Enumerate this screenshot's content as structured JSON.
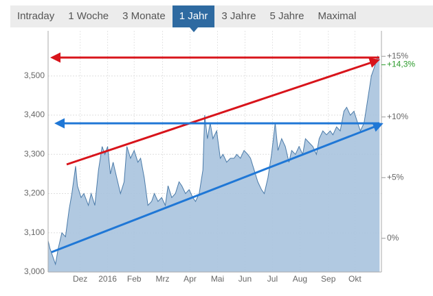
{
  "tabs": [
    "Intraday",
    "1 Woche",
    "3 Monate",
    "1 Jahr",
    "3 Jahre",
    "5 Jahre",
    "Maximal"
  ],
  "active_tab": 3,
  "chart_data": {
    "type": "area",
    "x": [
      0,
      2,
      5,
      8,
      11,
      15,
      19,
      23,
      26,
      30,
      32,
      36,
      39,
      44,
      47,
      51,
      55,
      59,
      62,
      65,
      68,
      71,
      75,
      79,
      83,
      86,
      90,
      94,
      98,
      101,
      105,
      109,
      113,
      116,
      120,
      124,
      128,
      131,
      135,
      139,
      143,
      146,
      150,
      154,
      158,
      161,
      165,
      169,
      171,
      174,
      177,
      180,
      184,
      188,
      191,
      195,
      199,
      203,
      206,
      210,
      214,
      218,
      221,
      225,
      229,
      233,
      236,
      240,
      244,
      248,
      251,
      255,
      259,
      263,
      266,
      270,
      274,
      278,
      281,
      285,
      289,
      293,
      296,
      300,
      304,
      308,
      311,
      315,
      319,
      323,
      326,
      330,
      334,
      338,
      341,
      345,
      349,
      353,
      356,
      360,
      362
    ],
    "values": [
      3080,
      3060,
      3040,
      3020,
      3060,
      3100,
      3090,
      3160,
      3200,
      3270,
      3220,
      3190,
      3200,
      3170,
      3200,
      3170,
      3260,
      3320,
      3300,
      3320,
      3250,
      3280,
      3240,
      3200,
      3230,
      3320,
      3290,
      3310,
      3280,
      3290,
      3240,
      3170,
      3180,
      3200,
      3180,
      3190,
      3170,
      3220,
      3190,
      3200,
      3230,
      3220,
      3200,
      3210,
      3190,
      3180,
      3200,
      3260,
      3400,
      3340,
      3380,
      3340,
      3360,
      3290,
      3300,
      3280,
      3290,
      3290,
      3300,
      3290,
      3310,
      3300,
      3290,
      3260,
      3230,
      3210,
      3200,
      3240,
      3300,
      3380,
      3310,
      3340,
      3320,
      3280,
      3310,
      3300,
      3320,
      3300,
      3340,
      3330,
      3320,
      3300,
      3340,
      3360,
      3350,
      3360,
      3350,
      3370,
      3360,
      3410,
      3420,
      3400,
      3410,
      3380,
      3360,
      3380,
      3440,
      3500,
      3520,
      3550,
      3540
    ],
    "color": "#4a7aa8",
    "fill": "#a9c3de",
    "xlim": [
      0,
      364
    ],
    "xticks": [
      {
        "value": 35,
        "label": "Dez"
      },
      {
        "value": 65,
        "label": "2016"
      },
      {
        "value": 94,
        "label": "Feb"
      },
      {
        "value": 125,
        "label": "Mrz"
      },
      {
        "value": 155,
        "label": "Apr"
      },
      {
        "value": 185,
        "label": "Mai"
      },
      {
        "value": 215,
        "label": "Jun"
      },
      {
        "value": 245,
        "label": "Jul"
      },
      {
        "value": 275,
        "label": "Aug"
      },
      {
        "value": 306,
        "label": "Sep"
      },
      {
        "value": 335,
        "label": "Okt"
      }
    ],
    "ylim": [
      3000,
      3615
    ],
    "yticks": [
      {
        "value": 3000,
        "label": "3,000"
      },
      {
        "value": 3100,
        "label": "3,100"
      },
      {
        "value": 3200,
        "label": "3,200"
      },
      {
        "value": 3300,
        "label": "3,300"
      },
      {
        "value": 3400,
        "label": "3,400"
      },
      {
        "value": 3500,
        "label": "3,500"
      }
    ],
    "y2lim": [
      -2.78,
      17.1
    ],
    "y2ticks": [
      {
        "value": 0,
        "label": "0%"
      },
      {
        "value": 5,
        "label": "+5%"
      },
      {
        "value": 10,
        "label": "+10%"
      },
      {
        "value": 15,
        "label": "+15%"
      }
    ],
    "annotation": "+14,3%",
    "annotation_value": 14.3,
    "grid": true
  }
}
